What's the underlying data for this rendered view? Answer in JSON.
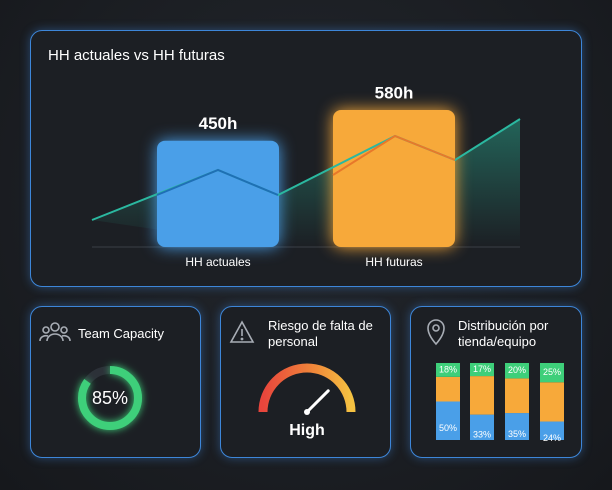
{
  "chart_data": [
    {
      "type": "bar",
      "title": "HH actuales vs HH futuras",
      "categories": [
        "HH actuales",
        "HH futuras"
      ],
      "values": [
        450,
        580
      ],
      "value_labels": [
        "450h",
        "580h"
      ],
      "colors": [
        "#4a9fe8",
        "#f7a93a"
      ]
    },
    {
      "type": "donut",
      "title": "Team Capacity",
      "values": [
        85
      ],
      "value_labels": [
        "85%"
      ],
      "color": "#3ecf7a",
      "ylim": [
        0,
        100
      ]
    },
    {
      "type": "gauge",
      "title": "Riesgo de falta de personal",
      "values": [
        75
      ],
      "value_labels": [
        "High"
      ],
      "ylim": [
        0,
        100
      ]
    },
    {
      "type": "stacked-bar",
      "title": "Distribución por tienda/equipo",
      "categories": [
        null,
        null,
        null,
        null
      ],
      "ylim": [
        0,
        100
      ],
      "series": [
        {
          "color": "#4a9fe8",
          "values": [
            50,
            33,
            35,
            24
          ],
          "value_labels": [
            "50%",
            "33%",
            "35%",
            "24%"
          ]
        },
        {
          "color": "#f7a93a",
          "values": [
            32,
            50,
            45,
            51
          ]
        },
        {
          "color": "#3ecf7a",
          "values": [
            18,
            17,
            20,
            25
          ],
          "value_labels": [
            "18%",
            "17%",
            "20%",
            "25%"
          ]
        }
      ]
    }
  ]
}
